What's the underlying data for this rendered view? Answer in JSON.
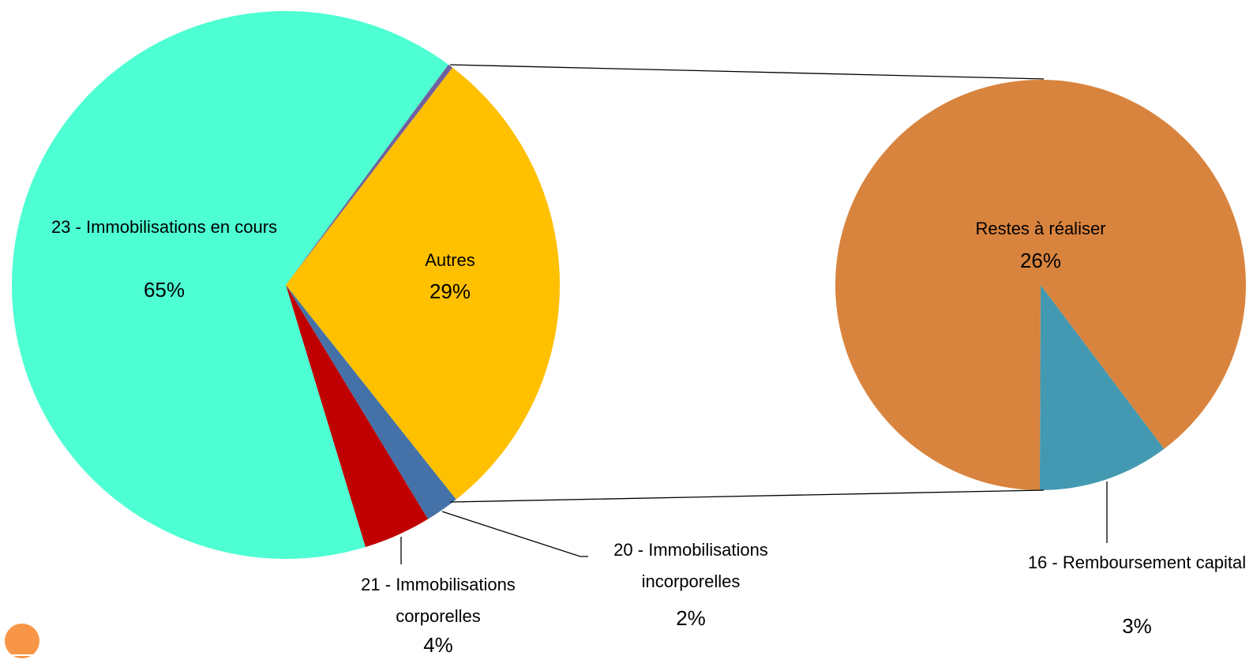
{
  "chart_data": [
    {
      "type": "pie",
      "categories": [
        null,
        "Autres",
        "20 - Immobilisations incorporelles",
        "21 - Immobilisations corporelles",
        "23 - Immobilisations en cours"
      ],
      "values": [
        0.3,
        29,
        2,
        4,
        65
      ],
      "value_labels": [
        null,
        "29%",
        "2%",
        "4%",
        "65%"
      ],
      "colors": [
        "#7060a0",
        "#ffc000",
        "#4472a8",
        "#c00000",
        "#4dffd2"
      ]
    },
    {
      "type": "pie",
      "categories": [
        "16 - Remboursement capital",
        "Restes à réaliser"
      ],
      "values": [
        3,
        26
      ],
      "value_labels": [
        "3%",
        "26%"
      ],
      "colors": [
        "#4399b1",
        "#d9843e"
      ]
    }
  ]
}
